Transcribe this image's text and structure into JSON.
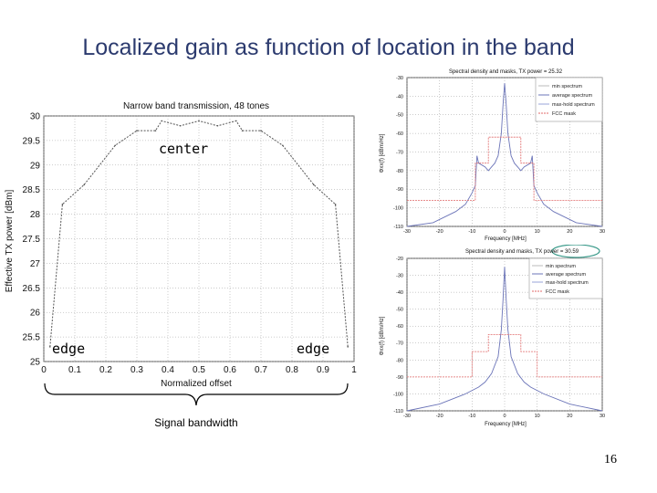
{
  "slide": {
    "title": "Localized gain as function of location in the band",
    "page_number": "16",
    "labels": {
      "center": "center",
      "edge_left": "edge",
      "edge_right": "edge",
      "brace": "Signal bandwidth"
    }
  },
  "colors": {
    "title": "#2b3a6e",
    "main_line": "#555555",
    "spectrum": "#6b74b8",
    "mask": "#e06a6a",
    "highlight": "#3a9a8a"
  },
  "chart_data": [
    {
      "type": "line",
      "title": "Narrow band transmission, 48 tones",
      "xlabel": "Normalized offset",
      "ylabel": "Effective TX power [dBm]",
      "xlim": [
        0,
        1
      ],
      "ylim": [
        25,
        30
      ],
      "xticks": [
        "0",
        "0.1",
        "0.2",
        "0.3",
        "0.4",
        "0.5",
        "0.6",
        "0.7",
        "0.8",
        "0.9",
        "1"
      ],
      "yticks": [
        "25",
        "25.5",
        "26",
        "26.5",
        "27",
        "27.5",
        "28",
        "28.5",
        "29",
        "29.5",
        "30"
      ],
      "grid": true,
      "series": [
        {
          "x": [
            0.02,
            0.06,
            0.13,
            0.23,
            0.3,
            0.36,
            0.38,
            0.44,
            0.5,
            0.56,
            0.62,
            0.64,
            0.7,
            0.77,
            0.87,
            0.94,
            0.98
          ],
          "y": [
            25.3,
            28.2,
            28.6,
            29.4,
            29.7,
            29.7,
            29.9,
            29.8,
            29.9,
            29.8,
            29.9,
            29.7,
            29.7,
            29.4,
            28.6,
            28.2,
            25.3
          ]
        }
      ]
    },
    {
      "type": "line",
      "title": "Spectral density and masks, TX power = 25.32",
      "xlabel": "Frequency [MHz]",
      "ylabel": "Φxx(f) [dBm/Hz]",
      "xlim": [
        -30,
        30
      ],
      "ylim": [
        -110,
        -30
      ],
      "xticks": [
        "-30",
        "-20",
        "-10",
        "0",
        "10",
        "20",
        "30"
      ],
      "yticks": [
        "-30",
        "-40",
        "-50",
        "-60",
        "-70",
        "-80",
        "-90",
        "-100",
        "-110"
      ],
      "legend": [
        "min spectrum",
        "average spectrum",
        "max-hold spectrum",
        "FCC mask"
      ],
      "legend_position": "top-right",
      "series": [
        {
          "name": "average spectrum",
          "x": [
            -30,
            -22,
            -15,
            -12,
            -10,
            -9,
            -8.5,
            -8,
            -6,
            -5,
            -4,
            -3,
            -2,
            -1,
            -0.5,
            0,
            0.5,
            1,
            2,
            3,
            4,
            5,
            6,
            8,
            8.5,
            9,
            10,
            12,
            15,
            22,
            30
          ],
          "y": [
            -110,
            -108,
            -102,
            -98,
            -92,
            -88,
            -72,
            -76,
            -78,
            -80,
            -78,
            -76,
            -72,
            -60,
            -45,
            -33,
            -45,
            -60,
            -72,
            -76,
            -78,
            -80,
            -78,
            -76,
            -72,
            -88,
            -92,
            -98,
            -102,
            -108,
            -110
          ]
        },
        {
          "name": "FCC mask",
          "x": [
            -30,
            -9,
            -9,
            -5,
            -5,
            5,
            5,
            9,
            9,
            30
          ],
          "y": [
            -96,
            -96,
            -76,
            -76,
            -62,
            -62,
            -76,
            -76,
            -96,
            -96
          ]
        }
      ]
    },
    {
      "type": "line",
      "title": "Spectral density and masks, TX power = 30.59",
      "xlabel": "Frequency [MHz]",
      "ylabel": "Φxx(f) [dBm/Hz]",
      "xlim": [
        -30,
        30
      ],
      "ylim": [
        -110,
        -20
      ],
      "xticks": [
        "-30",
        "-20",
        "-10",
        "0",
        "10",
        "20",
        "30"
      ],
      "yticks": [
        "-20",
        "-30",
        "-40",
        "-50",
        "-60",
        "-70",
        "-80",
        "-90",
        "-100",
        "-110"
      ],
      "legend": [
        "min spectrum",
        "average spectrum",
        "max-hold spectrum",
        "FCC mask"
      ],
      "legend_position": "top-right",
      "series": [
        {
          "name": "average spectrum",
          "x": [
            -30,
            -20,
            -12,
            -8,
            -6,
            -4,
            -2,
            -1,
            -0.5,
            0,
            0.5,
            1,
            2,
            4,
            6,
            8,
            12,
            20,
            30
          ],
          "y": [
            -110,
            -106,
            -100,
            -96,
            -93,
            -88,
            -78,
            -62,
            -45,
            -25,
            -45,
            -62,
            -78,
            -88,
            -93,
            -96,
            -100,
            -106,
            -110
          ]
        },
        {
          "name": "FCC mask",
          "x": [
            -30,
            -10,
            -10,
            -5,
            -5,
            5,
            5,
            10,
            10,
            30
          ],
          "y": [
            -90,
            -90,
            -75,
            -75,
            -65,
            -65,
            -75,
            -75,
            -90,
            -90
          ]
        }
      ]
    }
  ]
}
